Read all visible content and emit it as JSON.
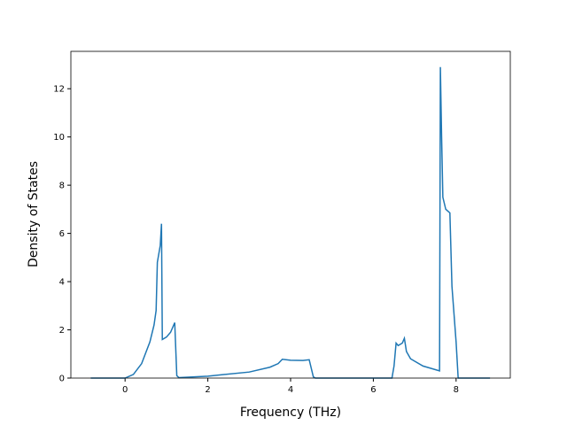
{
  "chart_data": {
    "type": "line",
    "x_label": "Frequency (THz)",
    "y_label": "Density of States",
    "x": [
      -0.83,
      0,
      0.2,
      0.4,
      0.6,
      0.7,
      0.75,
      0.78,
      0.85,
      0.88,
      0.9,
      1.0,
      1.1,
      1.2,
      1.25,
      1.3,
      2,
      3,
      3.5,
      3.7,
      3.8,
      4.0,
      4.3,
      4.45,
      4.55,
      4.6,
      6.45,
      6.5,
      6.55,
      6.6,
      6.7,
      6.75,
      6.8,
      6.9,
      7.2,
      7.6,
      7.62,
      7.65,
      7.68,
      7.75,
      7.85,
      7.9,
      8.0,
      8.05,
      8.82
    ],
    "series": [
      {
        "color": "#1f77b4",
        "values": [
          0,
          0,
          0.15,
          0.6,
          1.5,
          2.2,
          2.8,
          4.8,
          5.5,
          6.4,
          1.6,
          1.7,
          1.9,
          2.3,
          0.1,
          0.02,
          0.08,
          0.25,
          0.45,
          0.6,
          0.78,
          0.74,
          0.73,
          0.76,
          0.05,
          0,
          0,
          0.5,
          1.45,
          1.35,
          1.45,
          1.65,
          1.1,
          0.8,
          0.5,
          0.3,
          12.9,
          10,
          7.5,
          7.0,
          6.85,
          3.8,
          1.5,
          0,
          0
        ]
      }
    ],
    "xlim": [
      -1.31,
      9.31
    ],
    "ylim": [
      0,
      13.55
    ],
    "xticks": [
      0,
      2,
      4,
      6,
      8
    ],
    "yticks": [
      0,
      2,
      4,
      6,
      8,
      10,
      12
    ]
  }
}
